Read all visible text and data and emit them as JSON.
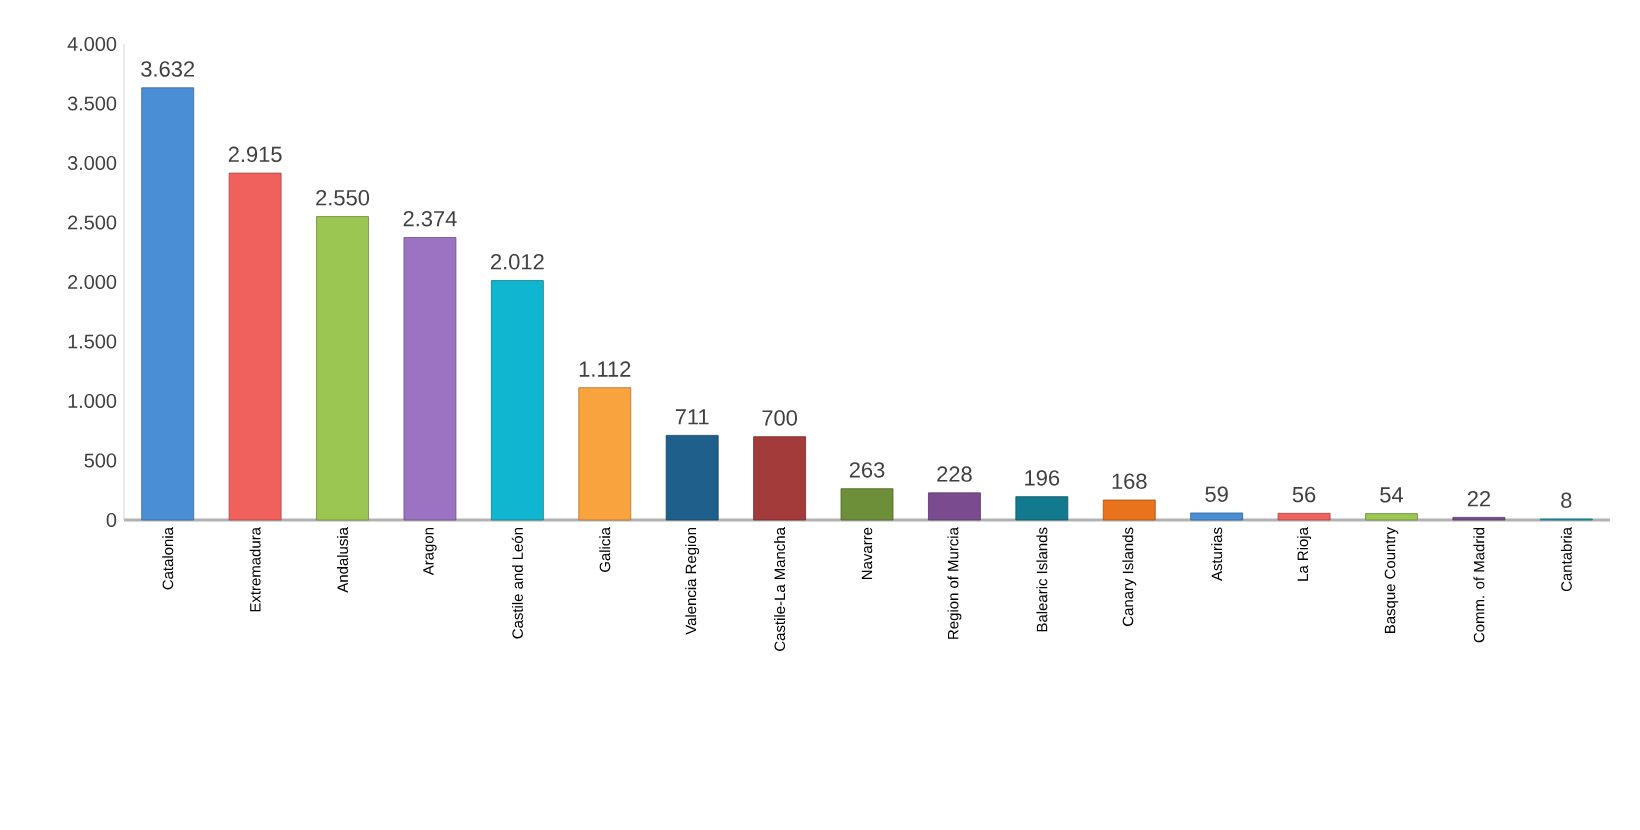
{
  "chart_data": {
    "type": "bar",
    "categories": [
      "Catalonia",
      "Extremadura",
      "Andalusia",
      "Aragon",
      "Castile and León",
      "Galicia",
      "Valencia Region",
      "Castile-La Mancha",
      "Navarre",
      "Region of Murcia",
      "Balearic Islands",
      "Canary Islands",
      "Asturias",
      "La Rioja",
      "Basque Country",
      "Comm. of Madrid",
      "Cantabria"
    ],
    "values": [
      3632,
      2915,
      2550,
      2374,
      2012,
      1112,
      711,
      700,
      263,
      228,
      196,
      168,
      59,
      56,
      54,
      22,
      8
    ],
    "value_labels": [
      "3.632",
      "2.915",
      "2.550",
      "2.374",
      "2.012",
      "1.112",
      "711",
      "700",
      "263",
      "228",
      "196",
      "168",
      "59",
      "56",
      "54",
      "22",
      "8"
    ],
    "colors": [
      "#4a8fd6",
      "#f0615d",
      "#9bc652",
      "#9b73c2",
      "#10b6cf",
      "#f9a33f",
      "#1f5f8b",
      "#a33b3b",
      "#6e8f3a",
      "#7a4c8f",
      "#13798e",
      "#e8731c",
      "#4a8fd6",
      "#f0615d",
      "#9bc652",
      "#7a4c8f",
      "#13a6bf"
    ],
    "ylim": [
      0,
      4000
    ],
    "yticks": [
      {
        "value": 0,
        "label": "0"
      },
      {
        "value": 500,
        "label": "500"
      },
      {
        "value": 1000,
        "label": "1.000"
      },
      {
        "value": 1500,
        "label": "1.500"
      },
      {
        "value": 2000,
        "label": "2.000"
      },
      {
        "value": 2500,
        "label": "2.500"
      },
      {
        "value": 3000,
        "label": "3.000"
      },
      {
        "value": 3500,
        "label": "3.500"
      },
      {
        "value": 4000,
        "label": "4.000"
      }
    ],
    "grid": false
  }
}
